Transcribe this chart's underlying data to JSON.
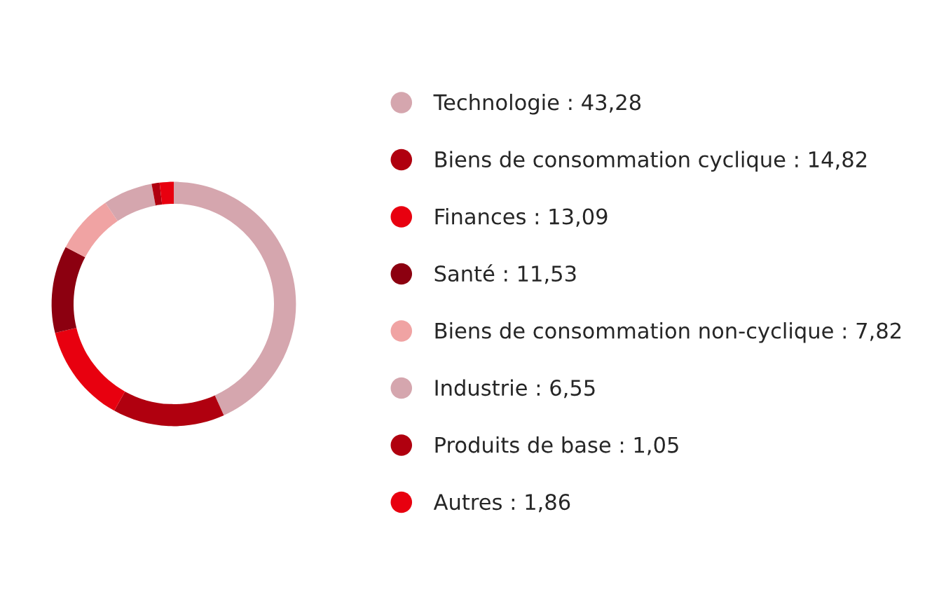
{
  "chart_data": {
    "type": "donut",
    "categories": [
      "Technologie",
      "Biens de consommation cyclique",
      "Finances",
      "Santé",
      "Biens de consommation non-cyclique",
      "Industrie",
      "Produits de base",
      "Autres"
    ],
    "values": [
      43.28,
      14.82,
      13.09,
      11.53,
      7.82,
      6.55,
      1.05,
      1.86
    ],
    "value_labels": [
      "43,28",
      "14,82",
      "13,09",
      "11,53",
      "7,82",
      "6,55",
      "1,05",
      "1,86"
    ],
    "colors": [
      "#d5a6ae",
      "#b0000f",
      "#e8000f",
      "#8c0010",
      "#f0a3a3",
      "#d5a6ae",
      "#b0000f",
      "#e8000f"
    ],
    "legend": "right"
  }
}
